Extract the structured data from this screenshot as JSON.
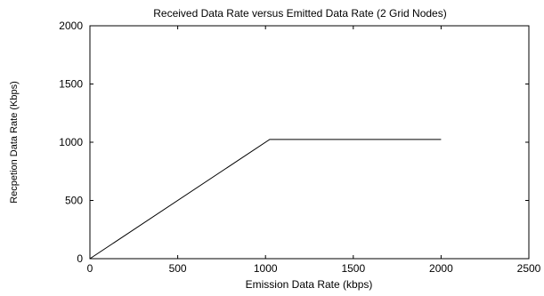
{
  "chart_data": {
    "type": "line",
    "title": "Received Data Rate versus Emitted Data Rate (2 Grid Nodes)",
    "xlabel": "Emission Data Rate (kbps)",
    "ylabel": "Recpetion Data Rate (Kbps)",
    "xlim": [
      0,
      2500
    ],
    "ylim": [
      0,
      2000
    ],
    "xticks": [
      0,
      500,
      1000,
      1500,
      2000,
      2500
    ],
    "yticks": [
      0,
      500,
      1000,
      1500,
      2000
    ],
    "x_tick_labels": [
      "0",
      "500",
      "1000",
      "1500",
      "2000",
      "2500"
    ],
    "y_tick_labels": [
      "0",
      "500",
      "1000",
      "1500",
      "2000"
    ],
    "grid": false,
    "legend": "none",
    "series": [
      {
        "color": "#000000",
        "x": [
          0,
          1024,
          2000
        ],
        "y": [
          0,
          1024,
          1024
        ]
      }
    ]
  }
}
